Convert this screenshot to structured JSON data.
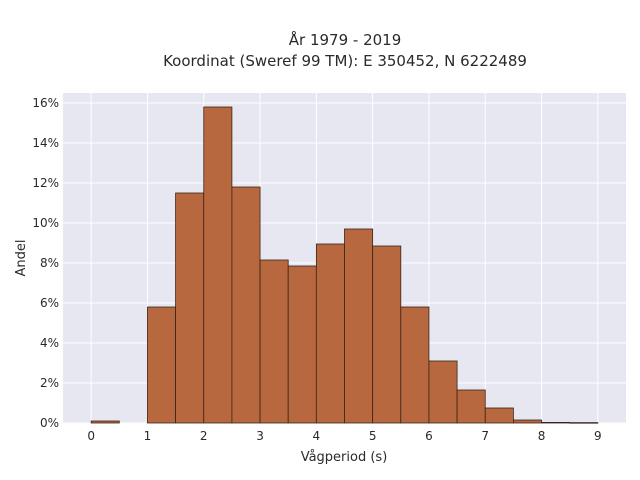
{
  "chart_data": {
    "type": "bar",
    "title_line1": "År 1979 - 2019",
    "title_line2": "Koordinat (Sweref 99 TM): E 350452, N 6222489",
    "xlabel": "Vågperiod (s)",
    "ylabel": "Andel",
    "bin_edges": [
      0,
      0.5,
      1,
      1.5,
      2,
      2.5,
      3,
      3.5,
      4,
      4.5,
      5,
      5.5,
      6,
      6.5,
      7,
      7.5,
      8,
      8.5,
      9
    ],
    "values": [
      0.1,
      0,
      5.8,
      11.5,
      15.8,
      11.8,
      8.15,
      7.85,
      8.95,
      9.7,
      8.85,
      5.8,
      3.1,
      1.65,
      0.75,
      0.15,
      0.03,
      0.02
    ],
    "x_ticks": [
      "0",
      "1",
      "2",
      "3",
      "4",
      "5",
      "6",
      "7",
      "8",
      "9"
    ],
    "y_ticks": [
      "0%",
      "2%",
      "4%",
      "6%",
      "8%",
      "10%",
      "12%",
      "14%",
      "16%"
    ],
    "xlim": [
      -0.5,
      9.5
    ],
    "ylim": [
      0,
      16.5
    ],
    "grid": true,
    "bar_color": "#b8683f",
    "bar_edge_color": "#3a2418",
    "plot_background": "#e6e7f0"
  }
}
